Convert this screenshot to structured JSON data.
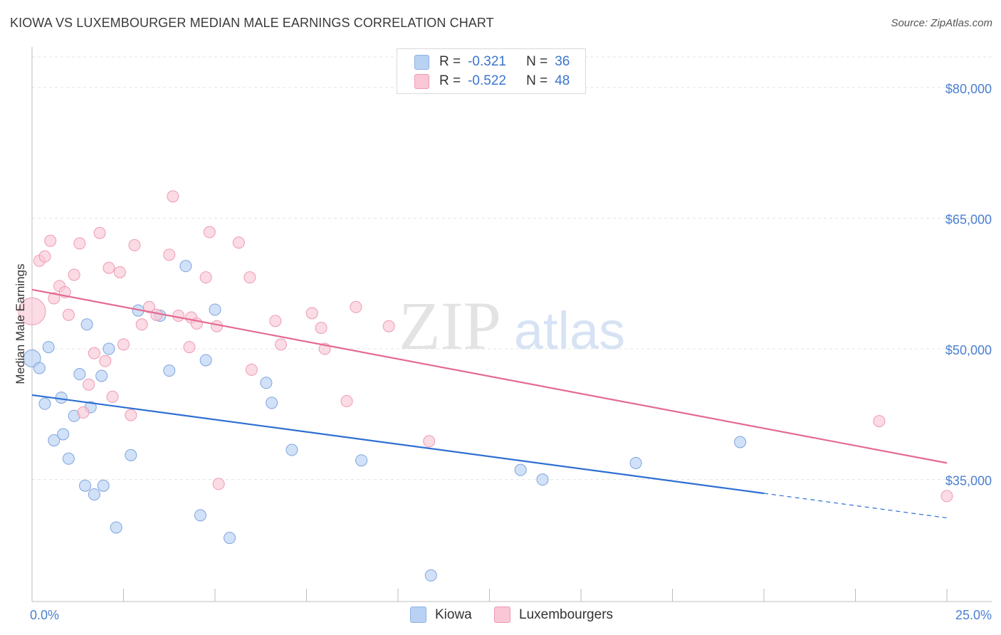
{
  "title": "KIOWA VS LUXEMBOURGER MEDIAN MALE EARNINGS CORRELATION CHART",
  "source": "Source: ZipAtlas.com",
  "watermark": {
    "zip": "ZIP",
    "atlas": "atlas"
  },
  "legend": {
    "series1": {
      "r_label": "R =",
      "r_value": "-0.321",
      "n_label": "N =",
      "n_value": "36",
      "color": "#b9d1f3",
      "border": "#8fb2e8"
    },
    "series2": {
      "r_label": "R =",
      "r_value": "-0.522",
      "n_label": "N =",
      "n_value": "48",
      "color": "#f9c7d6",
      "border": "#ee9ab4"
    }
  },
  "bottom_legend": {
    "kiowa": "Kiowa",
    "luxembourgers": "Luxembourgers"
  },
  "chart_data": {
    "type": "scatter",
    "xlabel": "",
    "ylabel": "Median Male Earnings",
    "xlim": [
      0,
      25
    ],
    "ylim": [
      21000,
      83500
    ],
    "x_tick_labels": {
      "left": "0.0%",
      "right": "25.0%"
    },
    "y_ticks": [
      80000,
      65000,
      50000,
      35000
    ],
    "y_tick_labels": [
      "$80,000",
      "$65,000",
      "$50,000",
      "$35,000"
    ],
    "series": [
      {
        "name": "Kiowa",
        "color": "#b9d1f3",
        "edge": "#7ea4e0",
        "line_color": "#2d6fd2",
        "trend": {
          "x0": 0,
          "y0": 44700,
          "x1": 25,
          "y1": 30600,
          "solid_until": 20
        },
        "points": [
          [
            0.0,
            48900
          ],
          [
            0.2,
            47800
          ],
          [
            0.45,
            50200
          ],
          [
            0.35,
            43700
          ],
          [
            0.8,
            44400
          ],
          [
            0.6,
            39500
          ],
          [
            0.85,
            40200
          ],
          [
            1.0,
            37400
          ],
          [
            1.15,
            42300
          ],
          [
            1.3,
            47100
          ],
          [
            1.5,
            52800
          ],
          [
            1.6,
            43300
          ],
          [
            1.9,
            46900
          ],
          [
            2.1,
            50000
          ],
          [
            1.45,
            34300
          ],
          [
            1.7,
            33300
          ],
          [
            1.95,
            34300
          ],
          [
            2.3,
            29500
          ],
          [
            2.7,
            37800
          ],
          [
            2.9,
            54400
          ],
          [
            3.5,
            53800
          ],
          [
            3.75,
            47500
          ],
          [
            4.2,
            59500
          ],
          [
            4.6,
            30900
          ],
          [
            4.75,
            48700
          ],
          [
            5.0,
            54500
          ],
          [
            5.4,
            28300
          ],
          [
            6.4,
            46100
          ],
          [
            6.55,
            43800
          ],
          [
            7.1,
            38400
          ],
          [
            9.0,
            37200
          ],
          [
            10.9,
            24000
          ],
          [
            13.35,
            36100
          ],
          [
            13.95,
            35000
          ],
          [
            16.5,
            36900
          ],
          [
            19.35,
            39300
          ]
        ]
      },
      {
        "name": "Luxembourgers",
        "color": "#f9c7d6",
        "edge": "#ee9ab4",
        "line_color": "#e46a92",
        "trend": {
          "x0": 0,
          "y0": 56800,
          "x1": 25,
          "y1": 36900,
          "solid_until": 25
        },
        "points": [
          [
            0.0,
            54300
          ],
          [
            0.2,
            60100
          ],
          [
            0.35,
            60600
          ],
          [
            0.5,
            62400
          ],
          [
            0.6,
            55800
          ],
          [
            0.75,
            57200
          ],
          [
            0.9,
            56500
          ],
          [
            1.0,
            53900
          ],
          [
            1.15,
            58500
          ],
          [
            1.3,
            62100
          ],
          [
            1.4,
            42700
          ],
          [
            1.55,
            45900
          ],
          [
            1.7,
            49500
          ],
          [
            1.85,
            63300
          ],
          [
            2.0,
            48600
          ],
          [
            2.1,
            59300
          ],
          [
            2.2,
            44500
          ],
          [
            2.4,
            58800
          ],
          [
            2.5,
            50500
          ],
          [
            2.7,
            42400
          ],
          [
            2.8,
            61900
          ],
          [
            3.0,
            52800
          ],
          [
            3.2,
            54800
          ],
          [
            3.4,
            53900
          ],
          [
            3.75,
            60800
          ],
          [
            3.85,
            67500
          ],
          [
            4.0,
            53800
          ],
          [
            4.3,
            50200
          ],
          [
            4.35,
            53600
          ],
          [
            4.5,
            52900
          ],
          [
            4.75,
            58200
          ],
          [
            4.85,
            63400
          ],
          [
            5.05,
            52600
          ],
          [
            5.1,
            34500
          ],
          [
            5.65,
            62200
          ],
          [
            5.95,
            58200
          ],
          [
            6.0,
            47600
          ],
          [
            6.65,
            53200
          ],
          [
            6.8,
            50500
          ],
          [
            7.65,
            54100
          ],
          [
            7.9,
            52400
          ],
          [
            8.0,
            50000
          ],
          [
            8.6,
            44000
          ],
          [
            8.85,
            54800
          ],
          [
            9.75,
            52600
          ],
          [
            10.85,
            39400
          ],
          [
            23.15,
            41700
          ],
          [
            25.0,
            33100
          ]
        ]
      }
    ]
  }
}
